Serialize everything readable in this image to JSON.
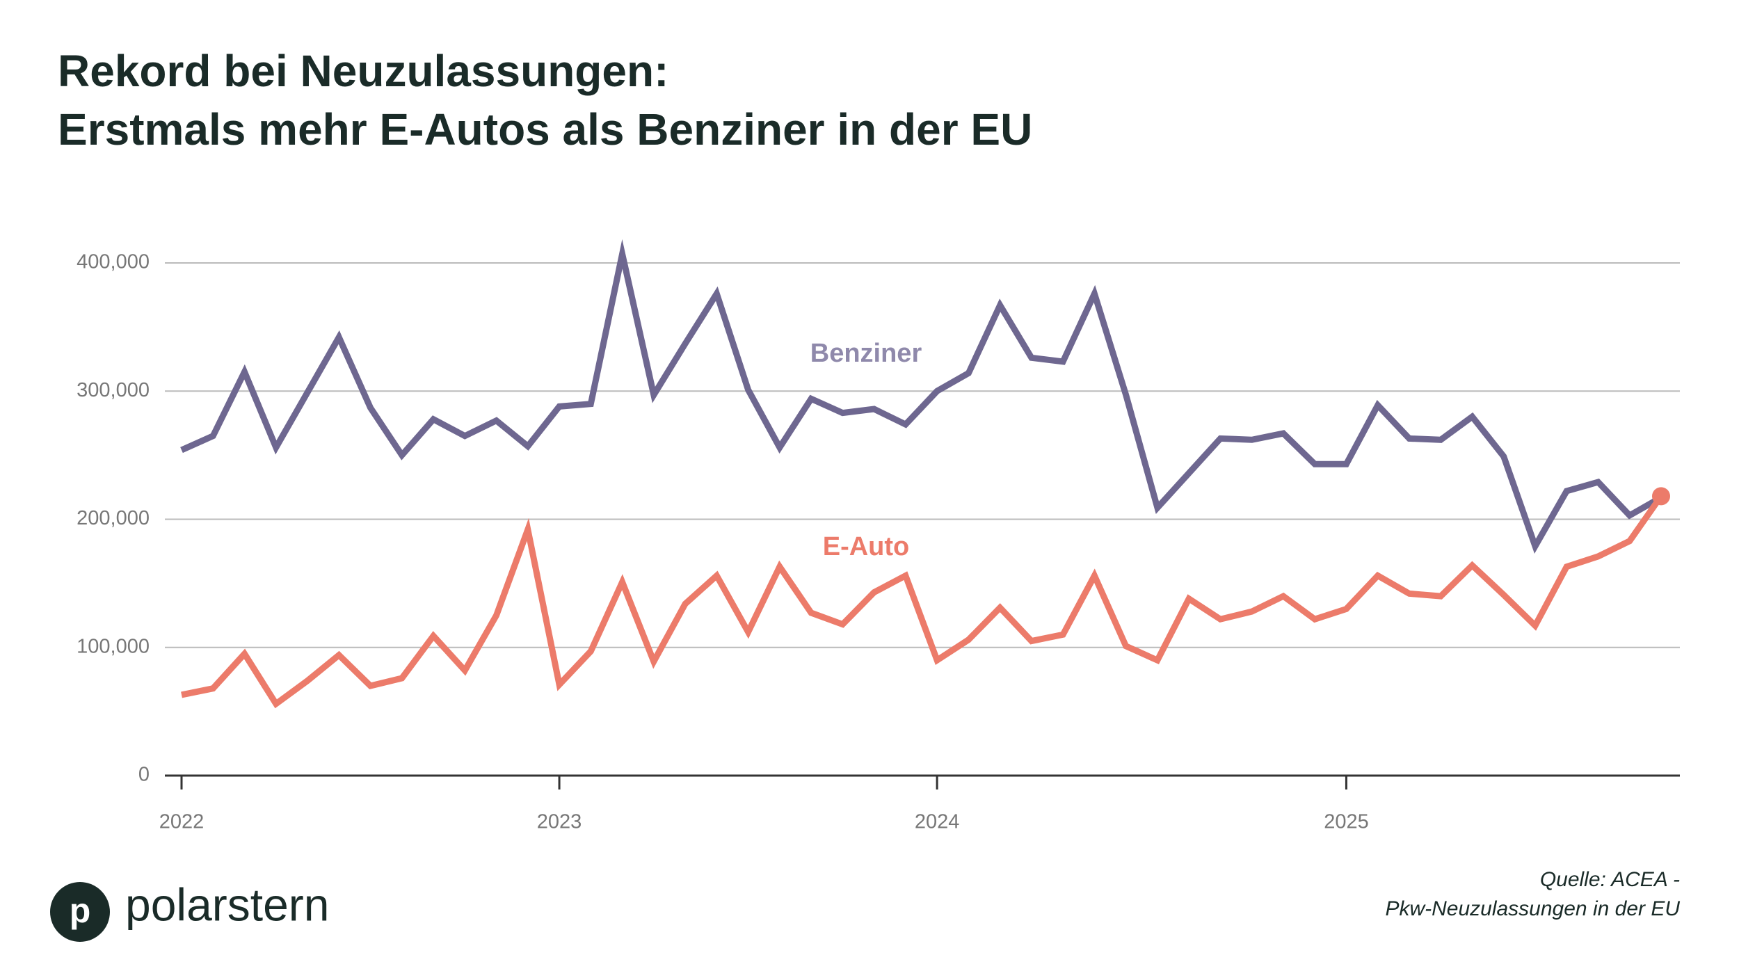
{
  "chart_data": {
    "type": "line",
    "title": [
      "Rekord bei Neuzulassungen:",
      "Erstmals mehr E-Autos als Benziner in der EU"
    ],
    "categories": [
      "2022",
      null,
      null,
      null,
      null,
      null,
      null,
      null,
      null,
      null,
      null,
      null,
      "2023",
      null,
      null,
      null,
      null,
      null,
      null,
      null,
      null,
      null,
      null,
      null,
      "2024",
      null,
      null,
      null,
      null,
      null,
      null,
      null,
      null,
      null,
      null,
      null,
      null,
      "2025",
      null,
      null,
      null,
      null,
      null,
      null,
      null,
      null,
      null,
      null
    ],
    "series": [
      {
        "name": "Benziner",
        "color": "#6e6790",
        "label_color": "#8f89ab",
        "values": [
          254000,
          265000,
          315000,
          256000,
          299000,
          342000,
          287000,
          250000,
          278000,
          265000,
          277000,
          257000,
          288000,
          290000,
          407000,
          297000,
          337000,
          376000,
          301000,
          256000,
          294000,
          283000,
          286000,
          274000,
          300000,
          314000,
          367000,
          326000,
          323000,
          376000,
          297000,
          209000,
          236000,
          263000,
          262000,
          267000,
          243000,
          243000,
          289000,
          263000,
          262000,
          280000,
          249000,
          179000,
          222000,
          229000,
          203000,
          217000
        ]
      },
      {
        "name": "E-Auto",
        "color": "#ec7b6a",
        "label_color": "#ec7b6a",
        "values": [
          63000,
          68000,
          95000,
          56000,
          74000,
          94000,
          70000,
          76000,
          109000,
          82000,
          125000,
          192000,
          71000,
          97000,
          151000,
          89000,
          134000,
          156000,
          112000,
          163000,
          127000,
          118000,
          143000,
          156000,
          90000,
          106000,
          131000,
          105000,
          110000,
          156000,
          101000,
          90000,
          138000,
          122000,
          128000,
          140000,
          122000,
          130000,
          156000,
          142000,
          140000,
          164000,
          141000,
          117000,
          163000,
          171000,
          183000,
          218000
        ]
      }
    ],
    "ylim": [
      0,
      400000
    ],
    "yticks": [
      0,
      {
        "value": 100000,
        "label": "100,000"
      },
      {
        "value": 200000,
        "label": "200,000"
      },
      {
        "value": 300000,
        "label": "300,000"
      },
      {
        "value": 400000,
        "label": "400,000"
      }
    ],
    "grid": true,
    "source": [
      "Quelle: ACEA -",
      "Pkw-Neuzulassungen in der EU"
    ]
  },
  "brand": {
    "icon": "p",
    "name": "polarstern"
  }
}
